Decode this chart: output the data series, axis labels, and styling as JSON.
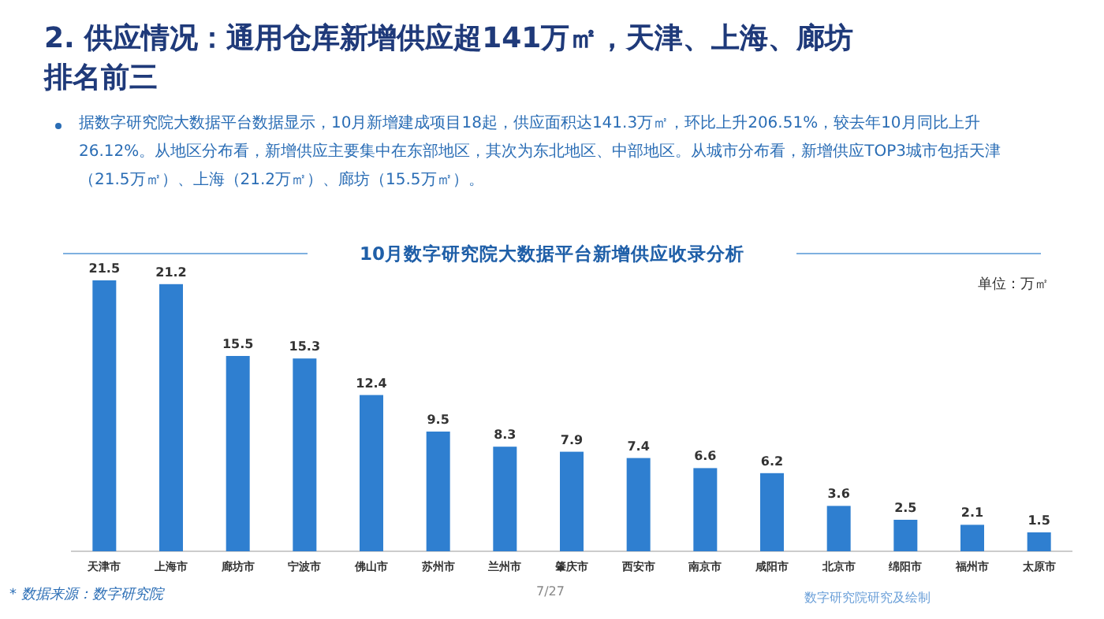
{
  "chart_data": {
    "type": "bar",
    "title": "2. 供应情况：通用仓库新增供应超141万㎡，天津、上海、廊坊排名前三",
    "subtitle": "10月数字研究院大数据平台新增供应收录分析",
    "ylabel": "单位：万㎡",
    "categories": [
      "天津市",
      "上海市",
      "廊坊市",
      "宁波市",
      "佛山市",
      "苏州市",
      "兰州市",
      "肇庆市",
      "西安市",
      "南京市",
      "咸阳市",
      "北京市",
      "绵阳市",
      "福州市",
      "太原市"
    ],
    "values": [
      21.5,
      21.2,
      15.5,
      15.3,
      12.4,
      9.5,
      8.3,
      7.9,
      7.4,
      6.6,
      6.2,
      3.6,
      2.5,
      2.1,
      1.5
    ],
    "color": "#2f7fd0",
    "data_labels": true,
    "annotations": [
      "据数字研究院大数据平台数据显示，10月新增建成项目18起，供应面积达141.3万㎡，环比上升206.51%，较去年10月同比上升26.12%。从地区分布看，新增供应主要集中在东部地区，其次为东北地区、中部地区。从城市分布看，新增供应TOP3城市包括天津（21.5万㎡）、上海（21.2万㎡）、廊坊（15.5万㎡）。",
      "* 数据来源：数字研究院",
      "7/27",
      "数字研究院研究及绘制"
    ]
  }
}
